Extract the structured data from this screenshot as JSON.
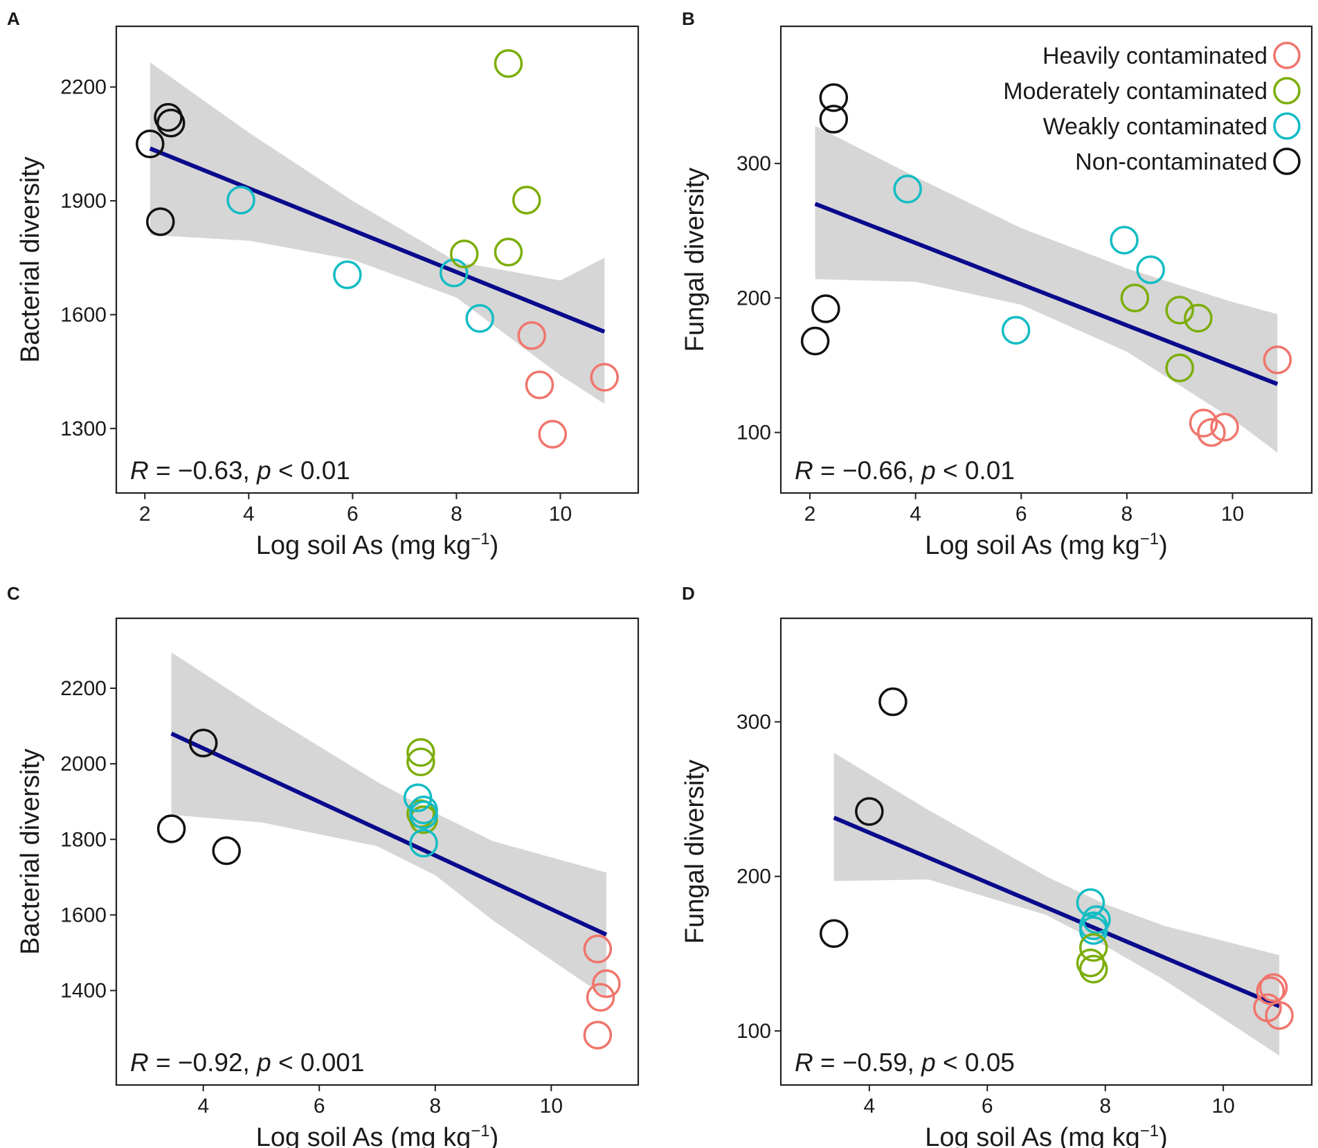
{
  "colors": {
    "heavy": "#f0756c",
    "moderate": "#7cad0a",
    "weak": "#14bcc4",
    "non": "#111111",
    "fit_line": "#0a0a8c",
    "ci_band": "#d6d6d6"
  },
  "legend": {
    "entries": [
      {
        "label": "Heavily contaminated",
        "group": "heavy"
      },
      {
        "label": "Moderately contaminated",
        "group": "moderate"
      },
      {
        "label": "Weakly contaminated",
        "group": "weak"
      },
      {
        "label": "Non-contaminated",
        "group": "non"
      }
    ]
  },
  "chart_data": [
    {
      "id": "A",
      "panel_label": "A",
      "type": "scatter",
      "xlabel_main": "Log soil As (mg kg",
      "xlabel_sup": "−1",
      "xlabel_close": ")",
      "ylabel": "Bacterial diversity",
      "xlim": [
        1.45,
        11.5
      ],
      "ylim": [
        1130,
        2360
      ],
      "xticks": [
        2,
        4,
        6,
        8,
        10
      ],
      "yticks": [
        1300,
        1600,
        1900,
        2200
      ],
      "stat": {
        "r_sym": "R",
        "r_text": " = −0.63, ",
        "p_sym": "p",
        "p_text": " < 0.01"
      },
      "fit": {
        "x": [
          2.1,
          10.85
        ],
        "y": [
          2038,
          1555
        ]
      },
      "ci": {
        "x": [
          2.1,
          4,
          6,
          8,
          10,
          10.85
        ],
        "upper": [
          2265,
          2080,
          1900,
          1740,
          1690,
          1750
        ],
        "lower": [
          1810,
          1795,
          1745,
          1645,
          1440,
          1365
        ]
      },
      "series": [
        {
          "name": "Non-contaminated",
          "group": "non",
          "x": [
            2.1,
            2.45,
            2.5,
            2.3
          ],
          "y": [
            2050,
            2120,
            2105,
            1845
          ]
        },
        {
          "name": "Weakly contaminated",
          "group": "weak",
          "x": [
            3.85,
            5.9,
            7.95,
            8.45
          ],
          "y": [
            1902,
            1705,
            1710,
            1590
          ]
        },
        {
          "name": "Moderately contaminated",
          "group": "moderate",
          "x": [
            9.0,
            9.35,
            8.15,
            9.0
          ],
          "y": [
            2262,
            1902,
            1760,
            1765
          ]
        },
        {
          "name": "Heavily contaminated",
          "group": "heavy",
          "x": [
            9.45,
            9.6,
            9.85,
            10.85
          ],
          "y": [
            1545,
            1415,
            1285,
            1435
          ]
        }
      ]
    },
    {
      "id": "B",
      "panel_label": "B",
      "type": "scatter",
      "xlabel_main": "Log soil As (mg kg",
      "xlabel_sup": "−1",
      "xlabel_close": ")",
      "ylabel": "Fungal diversity",
      "xlim": [
        1.45,
        11.5
      ],
      "ylim": [
        55,
        402
      ],
      "xticks": [
        2,
        4,
        6,
        8,
        10
      ],
      "yticks": [
        100,
        200,
        300
      ],
      "stat": {
        "r_sym": "R",
        "r_text": " = −0.66, ",
        "p_sym": "p",
        "p_text": " < 0.01"
      },
      "fit": {
        "x": [
          2.1,
          10.85
        ],
        "y": [
          270,
          136
        ]
      },
      "ci": {
        "x": [
          2.1,
          4,
          6,
          8,
          10,
          10.85
        ],
        "upper": [
          328,
          290,
          252,
          222,
          197,
          188
        ],
        "lower": [
          214,
          212,
          195,
          160,
          110,
          85
        ]
      },
      "series": [
        {
          "name": "Non-contaminated",
          "group": "non",
          "x": [
            2.45,
            2.45,
            2.3,
            2.1
          ],
          "y": [
            349,
            333,
            192,
            168
          ]
        },
        {
          "name": "Weakly contaminated",
          "group": "weak",
          "x": [
            3.85,
            7.95,
            8.45,
            5.9
          ],
          "y": [
            281,
            243,
            221,
            176
          ]
        },
        {
          "name": "Moderately contaminated",
          "group": "moderate",
          "x": [
            8.15,
            9.0,
            9.35,
            9.0
          ],
          "y": [
            200,
            191,
            185,
            148
          ]
        },
        {
          "name": "Heavily contaminated",
          "group": "heavy",
          "x": [
            10.85,
            9.45,
            9.85,
            9.6
          ],
          "y": [
            154,
            107,
            104,
            100
          ]
        }
      ]
    },
    {
      "id": "C",
      "panel_label": "C",
      "type": "scatter",
      "xlabel_main": "Log soil As (mg kg",
      "xlabel_sup": "−1",
      "xlabel_close": ")",
      "ylabel": "Bacterial diversity",
      "xlim": [
        2.5,
        11.5
      ],
      "ylim": [
        1150,
        2385
      ],
      "xticks": [
        4,
        6,
        8,
        10
      ],
      "yticks": [
        1400,
        1600,
        1800,
        2000,
        2200
      ],
      "stat": {
        "r_sym": "R",
        "r_text": " = −0.92, ",
        "p_sym": "p",
        "p_text": " < 0.001"
      },
      "fit": {
        "x": [
          3.45,
          10.95
        ],
        "y": [
          2080,
          1548
        ]
      },
      "ci": {
        "x": [
          3.45,
          5,
          7,
          8,
          9,
          10.95
        ],
        "upper": [
          2295,
          2140,
          1952,
          1870,
          1795,
          1712
        ],
        "lower": [
          1865,
          1845,
          1782,
          1705,
          1585,
          1382
        ]
      },
      "series": [
        {
          "name": "Non-contaminated",
          "group": "non",
          "x": [
            4.0,
            3.45,
            4.4
          ],
          "y": [
            2055,
            1828,
            1770
          ]
        },
        {
          "name": "Moderately contaminated",
          "group": "moderate",
          "x": [
            7.75,
            7.75,
            7.75,
            7.8
          ],
          "y": [
            2030,
            2005,
            1868,
            1852
          ]
        },
        {
          "name": "Weakly contaminated",
          "group": "weak",
          "x": [
            7.7,
            7.8,
            7.8,
            7.8
          ],
          "y": [
            1910,
            1878,
            1865,
            1790
          ]
        },
        {
          "name": "Heavily contaminated",
          "group": "heavy",
          "x": [
            10.8,
            10.95,
            10.85,
            10.8
          ],
          "y": [
            1510,
            1418,
            1382,
            1282
          ]
        }
      ]
    },
    {
      "id": "D",
      "panel_label": "D",
      "type": "scatter",
      "xlabel_main": "Log soil As (mg kg",
      "xlabel_sup": "−1",
      "xlabel_close": ")",
      "ylabel": "Fungal diversity",
      "xlim": [
        2.5,
        11.5
      ],
      "ylim": [
        65,
        367
      ],
      "xticks": [
        4,
        6,
        8,
        10
      ],
      "yticks": [
        100,
        200,
        300
      ],
      "stat": {
        "r_sym": "R",
        "r_text": " = −0.59, ",
        "p_sym": "p",
        "p_text": " < 0.05"
      },
      "fit": {
        "x": [
          3.4,
          10.95
        ],
        "y": [
          238,
          116
        ]
      },
      "ci": {
        "x": [
          3.4,
          5,
          7,
          8,
          9,
          10.95
        ],
        "upper": [
          280,
          243,
          200,
          182,
          168,
          149
        ],
        "lower": [
          197,
          198,
          175,
          155,
          133,
          84
        ]
      },
      "series": [
        {
          "name": "Non-contaminated",
          "group": "non",
          "x": [
            4.4,
            4.0,
            3.4
          ],
          "y": [
            313,
            242,
            163
          ]
        },
        {
          "name": "Weakly contaminated",
          "group": "weak",
          "x": [
            7.75,
            7.85,
            7.8,
            7.8
          ],
          "y": [
            183,
            172,
            168,
            165
          ]
        },
        {
          "name": "Moderately contaminated",
          "group": "moderate",
          "x": [
            7.8,
            7.75,
            7.8
          ],
          "y": [
            154,
            144,
            140
          ]
        },
        {
          "name": "Heavily contaminated",
          "group": "heavy",
          "x": [
            10.85,
            10.8,
            10.75,
            10.95
          ],
          "y": [
            128,
            126,
            115,
            110
          ]
        }
      ]
    }
  ]
}
